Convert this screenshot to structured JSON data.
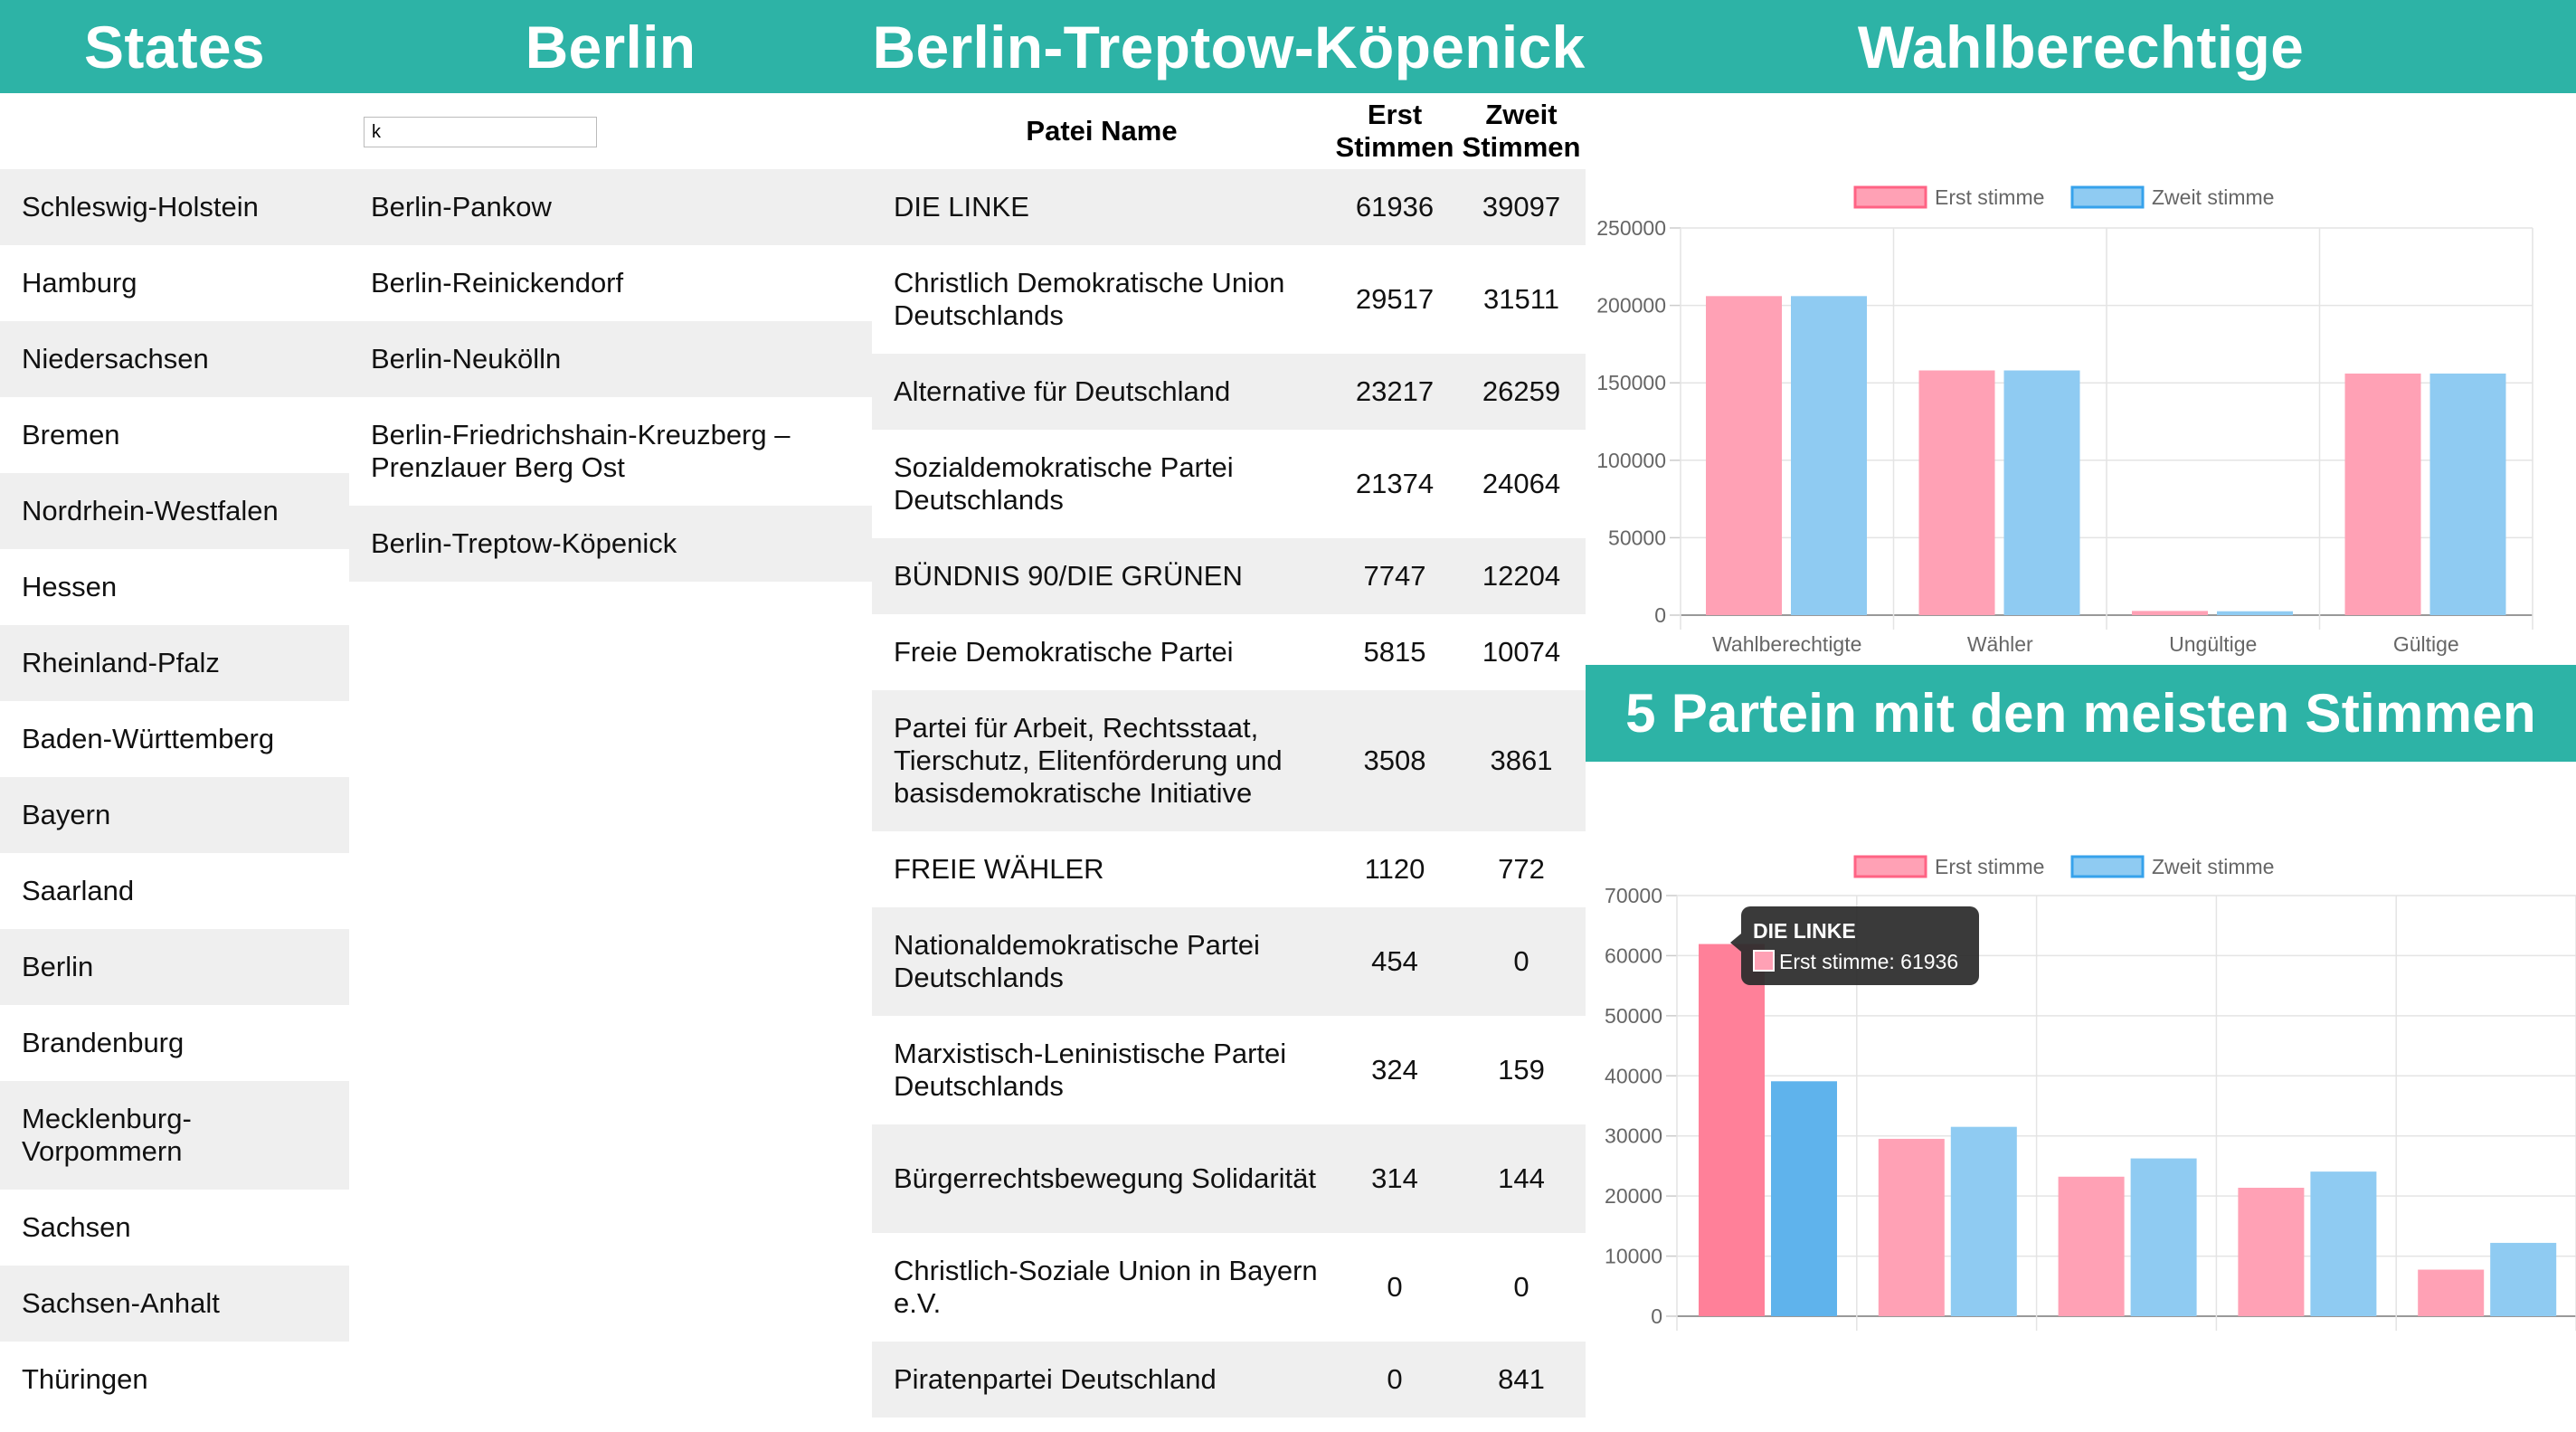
{
  "header": {
    "states": "States",
    "berlin": "Berlin",
    "kreis": "Berlin-Treptow-Köpenick",
    "wahl": "Wahlberechtige",
    "top5": "5 Partein mit den meisten Stimmen"
  },
  "search": {
    "value": "k"
  },
  "states": [
    "Schleswig-Holstein",
    "Hamburg",
    "Niedersachsen",
    "Bremen",
    "Nordrhein-Westfalen",
    "Hessen",
    "Rheinland-Pfalz",
    "Baden-Württemberg",
    "Bayern",
    "Saarland",
    "Berlin",
    "Brandenburg",
    "Mecklenburg-Vorpommern",
    "Sachsen",
    "Sachsen-Anhalt",
    "Thüringen"
  ],
  "districts": [
    "Berlin-Pankow",
    "Berlin-Reinickendorf",
    "Berlin-Neukölln",
    "Berlin-Friedrichshain-Kreuzberg – Prenzlauer Berg Ost",
    "Berlin-Treptow-Köpenick"
  ],
  "table": {
    "headers": {
      "name": "Patei Name",
      "erst": "Erst Stimmen",
      "zweit": "Zweit Stimmen"
    },
    "rows": [
      {
        "name": "DIE LINKE",
        "erst": "61936",
        "zweit": "39097"
      },
      {
        "name": "Christlich Demokratische Union Deutschlands",
        "erst": "29517",
        "zweit": "31511"
      },
      {
        "name": "Alternative für Deutschland",
        "erst": "23217",
        "zweit": "26259"
      },
      {
        "name": "Sozialdemokratische Partei Deutschlands",
        "erst": "21374",
        "zweit": "24064"
      },
      {
        "name": "BÜNDNIS 90/DIE GRÜNEN",
        "erst": "7747",
        "zweit": "12204"
      },
      {
        "name": "Freie Demokratische Partei",
        "erst": "5815",
        "zweit": "10074"
      },
      {
        "name": "Partei für Arbeit, Rechtsstaat, Tierschutz, Elitenförderung und basisdemokratische Initiative",
        "erst": "3508",
        "zweit": "3861"
      },
      {
        "name": "FREIE WÄHLER",
        "erst": "1120",
        "zweit": "772"
      },
      {
        "name": "Nationaldemokratische Partei Deutschlands",
        "erst": "454",
        "zweit": "0"
      },
      {
        "name": "Marxistisch-Leninistische Partei Deutschlands",
        "erst": "324",
        "zweit": "159"
      },
      {
        "name": "Bürgerrechtsbewegung Solidarität",
        "erst": "314",
        "zweit": "144"
      },
      {
        "name": "Christlich-Soziale Union in Bayern e.V.",
        "erst": "0",
        "zweit": "0"
      },
      {
        "name": "Piratenpartei Deutschland",
        "erst": "0",
        "zweit": "841"
      }
    ]
  },
  "colors": {
    "accent": "#2db3a6",
    "erst_fill": "#ffa1b5",
    "erst_border": "#ff6384",
    "zweit_fill": "#8fcbf2",
    "zweit_border": "#36a2eb"
  },
  "tooltip": {
    "title": "DIE LINKE",
    "text": "Erst stimme: 61936"
  },
  "chart_data": [
    {
      "type": "bar",
      "categories": [
        "Wahlberechtigte",
        "Wähler",
        "Ungültige",
        "Gültige"
      ],
      "series": [
        {
          "name": "Erst stimme",
          "values": [
            206000,
            158000,
            2700,
            156000
          ]
        },
        {
          "name": "Zweit stimme",
          "values": [
            206000,
            158000,
            2500,
            156000
          ]
        }
      ],
      "ylim": [
        0,
        250000
      ],
      "yticks": [
        "0",
        "50000",
        "100000",
        "150000",
        "200000",
        "250000"
      ],
      "legend": "top",
      "grid": true
    },
    {
      "type": "bar",
      "categories": [
        "",
        "",
        "",
        "",
        ""
      ],
      "series": [
        {
          "name": "Erst stimme",
          "values": [
            61936,
            29517,
            23217,
            21374,
            7747
          ]
        },
        {
          "name": "Zweit stimme",
          "values": [
            39097,
            31511,
            26259,
            24064,
            12204
          ]
        }
      ],
      "ylim": [
        0,
        70000
      ],
      "yticks": [
        "0",
        "10000",
        "20000",
        "30000",
        "40000",
        "50000",
        "60000",
        "70000"
      ],
      "legend": "top",
      "grid": true
    }
  ]
}
